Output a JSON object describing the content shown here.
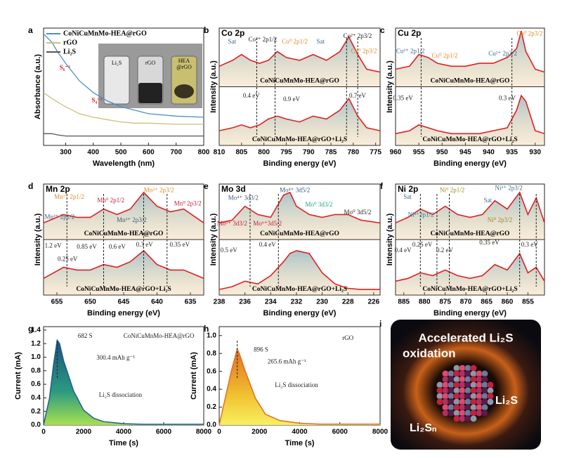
{
  "chart_data": [
    {
      "type": "line",
      "label": "a",
      "xlabel": "Wavelength (nm)",
      "ylabel": "Absorbance (a.u.)",
      "legend": "upper left",
      "xlim": [
        220,
        800
      ],
      "xticks": [
        300,
        400,
        500,
        600,
        700,
        800
      ],
      "ylim": [
        0,
        1
      ],
      "x": [
        220,
        250,
        270,
        300,
        350,
        400,
        450,
        500,
        550,
        600,
        700,
        800
      ],
      "series": [
        {
          "name": "CoNiCuMnMo-HEA@rGO",
          "color": "#4a8fc9",
          "values": [
            0.95,
            0.88,
            0.8,
            0.7,
            0.55,
            0.45,
            0.38,
            0.33,
            0.3,
            0.27,
            0.25,
            0.24
          ]
        },
        {
          "name": "rGO",
          "color": "#c9c27a",
          "values": [
            0.45,
            0.4,
            0.37,
            0.33,
            0.27,
            0.24,
            0.22,
            0.2,
            0.19,
            0.19,
            0.18,
            0.18
          ]
        },
        {
          "name": "Li₂S",
          "color": "#555555",
          "values": [
            0.1,
            0.1,
            0.09,
            0.08,
            0.08,
            0.08,
            0.08,
            0.08,
            0.08,
            0.08,
            0.08,
            0.08
          ]
        }
      ],
      "inset_labels": [
        "Li₂S",
        "rGO",
        "HEA",
        "@rGO"
      ],
      "annotations": [
        {
          "text": "S₆⁻²",
          "color": "#d42020"
        },
        {
          "text": "S₄⁻²",
          "color": "#d42020"
        }
      ]
    },
    {
      "type": "line",
      "label": "b",
      "title": "Co 2p",
      "xlabel": "Binding energy (eV)",
      "ylabel": "Intensity (a.u.)",
      "legend": "inline",
      "xlim": [
        810,
        774
      ],
      "xticks": [
        810,
        805,
        800,
        795,
        790,
        785,
        780,
        775
      ],
      "ylim": [
        0,
        2
      ],
      "x": [
        810,
        807,
        805,
        803,
        801,
        799,
        797,
        795,
        792,
        789,
        786,
        783,
        781,
        779,
        777,
        774
      ],
      "series": [
        {
          "name": "CoNiCuMnMo-HEA@rGO",
          "color": "#e02020",
          "values": [
            1.35,
            1.45,
            1.55,
            1.45,
            1.4,
            1.45,
            1.6,
            1.5,
            1.45,
            1.55,
            1.45,
            1.6,
            1.85,
            1.55,
            1.3,
            1.25
          ]
        },
        {
          "name": "CoNiCuMnMo-HEA@rGO+Li₂S",
          "color": "#e02020",
          "values": [
            0.25,
            0.3,
            0.35,
            0.3,
            0.35,
            0.45,
            0.5,
            0.45,
            0.4,
            0.5,
            0.45,
            0.6,
            0.8,
            0.5,
            0.3,
            0.25
          ]
        }
      ],
      "markers": [
        801.6,
        797.5,
        781.5,
        779
      ],
      "annotations": [
        {
          "text": "Sat",
          "color": "#3a6a8a"
        },
        {
          "text": "Co²⁺ 2p1/2",
          "color": "#222222"
        },
        {
          "text": "Co⁰ 2p1/2",
          "color": "#e08a20"
        },
        {
          "text": "Sat",
          "color": "#3a6a8a"
        },
        {
          "text": "Co²⁺ 2p3/2",
          "color": "#222222"
        },
        {
          "text": "Co⁰ 2p3/2",
          "color": "#e08a20"
        },
        {
          "text": "0.4 eV",
          "color": "#222222"
        },
        {
          "text": "0.9 eV",
          "color": "#222222"
        },
        {
          "text": "0.7 eV",
          "color": "#222222"
        }
      ]
    },
    {
      "type": "line",
      "label": "c",
      "title": "Cu 2p",
      "xlabel": "Binding energy (eV)",
      "ylabel": "Intensity (a.u.)",
      "legend": "inline",
      "xlim": [
        960,
        928
      ],
      "xticks": [
        960,
        955,
        950,
        945,
        940,
        935,
        930
      ],
      "ylim": [
        0,
        2
      ],
      "x": [
        960,
        957,
        955,
        953,
        951,
        948,
        945,
        942,
        939,
        936,
        934,
        933,
        932,
        930,
        928
      ],
      "series": [
        {
          "name": "CoNiCuMnMo-HEA@rGO",
          "color": "#e02020",
          "values": [
            1.3,
            1.35,
            1.55,
            1.5,
            1.4,
            1.35,
            1.35,
            1.4,
            1.4,
            1.5,
            1.65,
            1.95,
            1.6,
            1.3,
            1.25
          ]
        },
        {
          "name": "CoNiCuMnMo-HEA@rGO+Li₂S",
          "color": "#e02020",
          "values": [
            0.2,
            0.25,
            0.35,
            0.3,
            0.25,
            0.2,
            0.2,
            0.2,
            0.25,
            0.3,
            0.6,
            0.85,
            0.75,
            0.25,
            0.2
          ]
        }
      ],
      "markers": [
        954.5,
        935
      ],
      "annotations": [
        {
          "text": "Cu²⁺ 2p1/2",
          "color": "#3a6a8a"
        },
        {
          "text": "Cu⁰ 2p1/2",
          "color": "#e08a20"
        },
        {
          "text": "Cu²⁺ 2p3/2",
          "color": "#3a6a8a"
        },
        {
          "text": "Cu⁰ 2p3/2",
          "color": "#e08a20"
        },
        {
          "text": "0.35 eV",
          "color": "#222222"
        },
        {
          "text": "0.3 eV",
          "color": "#222222"
        }
      ]
    },
    {
      "type": "line",
      "label": "d",
      "title": "Mn 2p",
      "xlabel": "Binding energy (eV)",
      "ylabel": "Intensity (a.u.)",
      "legend": "inline",
      "xlim": [
        657,
        633
      ],
      "xticks": [
        655,
        650,
        645,
        640,
        635
      ],
      "ylim": [
        0,
        2
      ],
      "x": [
        657,
        654,
        652,
        650,
        648,
        646,
        644,
        642,
        640,
        638,
        636,
        633
      ],
      "series": [
        {
          "name": "CoNiCuMnMo-HEA@rGO",
          "color": "#e02020",
          "values": [
            1.3,
            1.45,
            1.4,
            1.4,
            1.55,
            1.45,
            1.55,
            1.85,
            1.6,
            1.5,
            1.55,
            1.3
          ]
        },
        {
          "name": "CoNiCuMnMo-HEA@rGO+Li₂S",
          "color": "#e02020",
          "values": [
            0.3,
            0.5,
            0.45,
            0.45,
            0.55,
            0.5,
            0.6,
            0.8,
            0.55,
            0.45,
            0.45,
            0.3
          ]
        }
      ],
      "markers": [
        653.5,
        648,
        642,
        638.5
      ],
      "annotations": [
        {
          "text": "Mn²⁺ 2p1/2",
          "color": "#e08a20"
        },
        {
          "text": "Mn⁰ 2p1/2",
          "color": "#c02040"
        },
        {
          "text": "Mn²⁺ 2p3/2",
          "color": "#e08a20"
        },
        {
          "text": "Mn⁰ 2p3/2",
          "color": "#c02040"
        },
        {
          "text": "Mn³⁺ 2p1/2",
          "color": "#3a5a7a"
        },
        {
          "text": "Mn³⁺ 2p3/2",
          "color": "#3a5a7a"
        },
        {
          "text": "1.2 eV",
          "color": "#222222"
        },
        {
          "text": "0.25 eV",
          "color": "#222222"
        },
        {
          "text": "0.85 eV",
          "color": "#222222"
        },
        {
          "text": "0.6 eV",
          "color": "#222222"
        },
        {
          "text": "0.3 eV",
          "color": "#222222"
        },
        {
          "text": "0.35 eV",
          "color": "#222222"
        }
      ]
    },
    {
      "type": "line",
      "label": "e",
      "title": "Mo 3d",
      "xlabel": "Binding energy (eV)",
      "ylabel": "Intensity (a.u.)",
      "legend": "inline",
      "xlim": [
        238,
        225.5
      ],
      "xticks": [
        238,
        236,
        234,
        232,
        230,
        228,
        226
      ],
      "ylim": [
        0,
        2
      ],
      "x": [
        238,
        237,
        236,
        235,
        234,
        233,
        232.5,
        232,
        231,
        230,
        229,
        228,
        227,
        225.5
      ],
      "series": [
        {
          "name": "CoNiCuMnMo-HEA@rGO",
          "color": "#e02020",
          "values": [
            1.3,
            1.35,
            1.6,
            1.45,
            1.4,
            1.8,
            1.85,
            1.6,
            1.45,
            1.4,
            1.45,
            1.45,
            1.35,
            1.3
          ]
        },
        {
          "name": "CoNiCuMnMo-HEA@rGO+Li₂S",
          "color": "#e02020",
          "values": [
            0.1,
            0.15,
            0.25,
            0.2,
            0.35,
            0.6,
            0.75,
            0.8,
            0.75,
            0.4,
            0.2,
            0.12,
            0.1,
            0.1
          ]
        }
      ],
      "markers": [
        235.6,
        233.4
      ],
      "annotations": [
        {
          "text": "Mo⁴⁺ 3d3/2",
          "color": "#3a5a7a"
        },
        {
          "text": "Mo⁴⁺ 3d5/2",
          "color": "#3a5a7a"
        },
        {
          "text": "Mo⁰ 3d3/2",
          "color": "#20a080"
        },
        {
          "text": "Mo⁰ 3d5/2",
          "color": "#222222"
        },
        {
          "text": "Mo⁶⁺ 3d3/2",
          "color": "#c02040"
        },
        {
          "text": "Mo⁶⁺3d5/2",
          "color": "#c02040"
        },
        {
          "text": "0.5 eV",
          "color": "#222222"
        },
        {
          "text": "0.4 eV",
          "color": "#222222"
        }
      ]
    },
    {
      "type": "line",
      "label": "f",
      "title": "Ni 2p",
      "xlabel": "Binding energy (eV)",
      "ylabel": "Intensity (a.u.)",
      "legend": "inline",
      "xlim": [
        887,
        851
      ],
      "xticks": [
        885,
        880,
        875,
        870,
        865,
        860,
        855
      ],
      "ylim": [
        0,
        2
      ],
      "x": [
        887,
        884,
        881,
        878,
        875,
        872,
        869,
        866,
        863,
        860,
        857,
        855,
        853,
        851
      ],
      "series": [
        {
          "name": "CoNiCuMnMo-HEA@rGO",
          "color": "#e02020",
          "values": [
            1.3,
            1.4,
            1.55,
            1.45,
            1.6,
            1.45,
            1.4,
            1.45,
            1.7,
            1.55,
            1.85,
            1.45,
            1.75,
            1.3
          ]
        },
        {
          "name": "CoNiCuMnMo-HEA@rGO+Li₂S",
          "color": "#e02020",
          "values": [
            0.25,
            0.3,
            0.4,
            0.35,
            0.45,
            0.35,
            0.3,
            0.35,
            0.55,
            0.45,
            0.75,
            0.4,
            0.5,
            0.25
          ]
        }
      ],
      "markers": [
        881,
        877,
        874,
        857,
        853
      ],
      "annotations": [
        {
          "text": "Sat",
          "color": "#3a6a8a"
        },
        {
          "text": "Ni⁰ 2p1/2",
          "color": "#9a8a20"
        },
        {
          "text": "Ni²⁺ 2p3/2",
          "color": "#3a6a8a"
        },
        {
          "text": "Sat",
          "color": "#3a6a8a"
        },
        {
          "text": "Ni²⁺2p1/2",
          "color": "#20808a"
        },
        {
          "text": "Ni⁰ 2p3/2",
          "color": "#9a8a20"
        },
        {
          "text": "0.4 eV",
          "color": "#222222"
        },
        {
          "text": "0.25 eV",
          "color": "#222222"
        },
        {
          "text": "0.2 eV",
          "color": "#222222"
        },
        {
          "text": "0.35 eV",
          "color": "#222222"
        },
        {
          "text": "0.3 eV",
          "color": "#222222"
        }
      ]
    },
    {
      "type": "area",
      "label": "g",
      "xlabel": "Time (s)",
      "ylabel": "Current (mA)",
      "color": "#1f5f8a",
      "xlim": [
        0,
        8000
      ],
      "xticks": [
        0,
        2000,
        4000,
        6000,
        8000
      ],
      "ylim": [
        0,
        1.45
      ],
      "yticks": [
        {
          "value": 0,
          "label": "0.0"
        },
        0.2,
        0.4,
        0.6,
        0.8,
        {
          "value": 1,
          "label": "1.0"
        },
        1.2,
        1.4
      ],
      "x": [
        0,
        300,
        500,
        682,
        800,
        1000,
        1500,
        2000,
        2500,
        3000,
        4000,
        5000,
        6000,
        8000
      ],
      "values": [
        0,
        0.4,
        0.9,
        1.25,
        1.2,
        0.95,
        0.5,
        0.22,
        0.1,
        0.05,
        0.02,
        0.01,
        0.01,
        0.01
      ],
      "markers": [
        682
      ],
      "annotations": [
        {
          "text": "682 S",
          "color": "#222222"
        },
        {
          "text": "300.4 mAh g⁻¹",
          "color": "#222222"
        },
        {
          "text": "Li₂S dissociation",
          "color": "#222222"
        },
        {
          "text": "CoNiCuMnMo-HEA@rGO",
          "color": "#222222"
        }
      ]
    },
    {
      "type": "area",
      "label": "h",
      "xlabel": "Time (s)",
      "ylabel": "Current (mA)",
      "color": "#e07020",
      "xlim": [
        0,
        8000
      ],
      "xticks": [
        0,
        2000,
        4000,
        6000,
        8000
      ],
      "ylim": [
        0,
        1.1
      ],
      "yticks": [
        {
          "value": 0,
          "label": "0.0"
        },
        0.2,
        0.4,
        0.6,
        0.8,
        {
          "value": 1,
          "label": "1.0"
        }
      ],
      "x": [
        0,
        300,
        600,
        896,
        1000,
        1300,
        1800,
        2300,
        3000,
        4000,
        5000,
        6000,
        8000
      ],
      "values": [
        0,
        0.3,
        0.6,
        0.85,
        0.8,
        0.6,
        0.3,
        0.12,
        0.05,
        0.02,
        0.01,
        0.01,
        0.01
      ],
      "markers": [
        896
      ],
      "annotations": [
        {
          "text": "896 S",
          "color": "#222222"
        },
        {
          "text": "265.6 mAh g⁻¹",
          "color": "#222222"
        },
        {
          "text": "Li₂S dissociation",
          "color": "#222222"
        },
        {
          "text": "rGO",
          "color": "#222222"
        }
      ]
    }
  ],
  "illustration": {
    "label": "i",
    "title": [
      "Accelerated Li₂S",
      "oxidation"
    ],
    "product": "Li₂S",
    "reactant": "Li₂Sₙ"
  }
}
